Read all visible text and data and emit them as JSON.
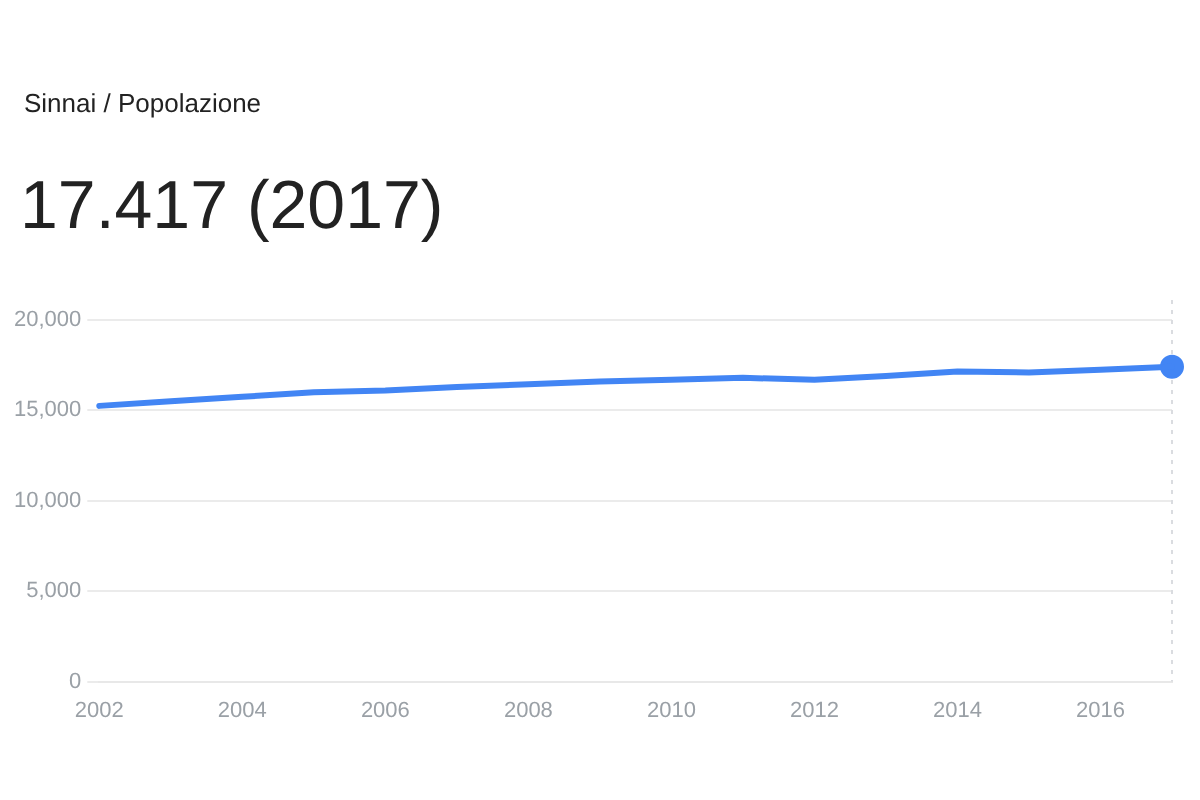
{
  "chart_data": {
    "type": "line",
    "subtitle": "Sinnai / Popolazione",
    "title": "17.417 (2017)",
    "x": [
      2002,
      2003,
      2004,
      2005,
      2006,
      2007,
      2008,
      2009,
      2010,
      2011,
      2012,
      2013,
      2014,
      2015,
      2016,
      2017
    ],
    "series": [
      {
        "color": "#4285f4",
        "values": [
          15250,
          15500,
          15750,
          16000,
          16100,
          16300,
          16450,
          16600,
          16700,
          16800,
          16700,
          16900,
          17150,
          17100,
          17250,
          17417
        ]
      },
      {
        "type": "scatter",
        "marker": "circle",
        "color": "#4285f4",
        "x": [
          2017
        ],
        "values": [
          17417
        ]
      }
    ],
    "xlim": [
      2002,
      2017
    ],
    "xticks": [
      2002,
      2004,
      2006,
      2008,
      2010,
      2012,
      2014,
      2016
    ],
    "ylim": [
      0,
      20000
    ],
    "yticks": [
      {
        "value": 0,
        "label": "0"
      },
      {
        "value": 5000,
        "label": "5,000"
      },
      {
        "value": 10000,
        "label": "10,000"
      },
      {
        "value": 15000,
        "label": "15,000"
      },
      {
        "value": 20000,
        "label": "20,000"
      }
    ],
    "ref_lines": [
      {
        "axis": "x",
        "value": 2017,
        "color": "#dadce0",
        "line_style": "dotted"
      }
    ],
    "grid": "y",
    "legend": false
  }
}
